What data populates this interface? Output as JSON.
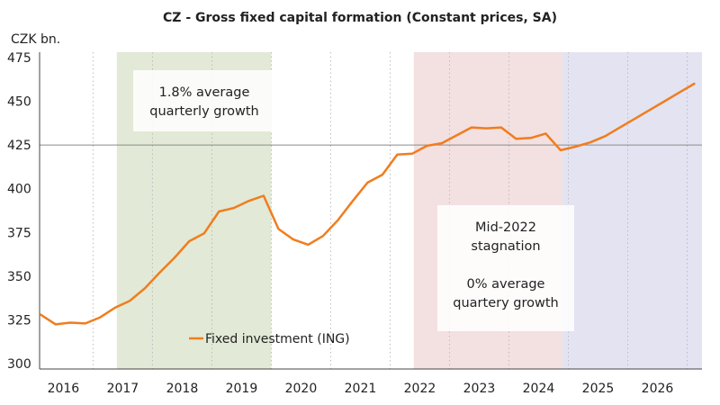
{
  "chart_data": {
    "type": "line",
    "title": "CZ - Gross fixed capital formation (Constant prices, SA)",
    "unit_label": "CZK bn.",
    "xlabel": "",
    "ylabel": "",
    "ylim": [
      297,
      478
    ],
    "yticks": [
      300,
      325,
      350,
      375,
      400,
      425,
      450,
      475
    ],
    "x_categories": [
      "2016",
      "2017",
      "2018",
      "2019",
      "2020",
      "2021",
      "2022",
      "2023",
      "2024",
      "2025",
      "2026"
    ],
    "xlim_years": [
      2015.6,
      2026.75
    ],
    "reference_line": 425,
    "series": [
      {
        "name": "Fixed investment (ING)",
        "color": "#f07d1e",
        "x": [
          2015.62,
          2015.87,
          2016.12,
          2016.37,
          2016.62,
          2016.87,
          2017.12,
          2017.37,
          2017.62,
          2017.87,
          2018.12,
          2018.37,
          2018.62,
          2018.87,
          2019.12,
          2019.37,
          2019.62,
          2019.87,
          2020.12,
          2020.37,
          2020.62,
          2020.87,
          2021.12,
          2021.37,
          2021.62,
          2021.87,
          2022.12,
          2022.37,
          2022.62,
          2022.87,
          2023.12,
          2023.37,
          2023.62,
          2023.87,
          2024.12,
          2024.37,
          2024.62,
          2024.87,
          2025.12,
          2025.37,
          2025.62,
          2025.87,
          2026.12,
          2026.37,
          2026.62
        ],
        "y": [
          328,
          322.5,
          323.5,
          323,
          326.5,
          332,
          336,
          343,
          352,
          360.5,
          370,
          374.5,
          387,
          389,
          393,
          396,
          377,
          371,
          368,
          373,
          382,
          393,
          403.5,
          408,
          419.5,
          420,
          424.5,
          426,
          430.5,
          435,
          434.5,
          435,
          428.5,
          429,
          431.5,
          422,
          424,
          426.5,
          430,
          435,
          440,
          445,
          450,
          455,
          460
        ]
      }
    ],
    "shaded_regions": [
      {
        "from": 2016.9,
        "to": 2019.5,
        "color": "#e2e9d6"
      },
      {
        "from": 2021.9,
        "to": 2024.4,
        "color": "#f3e0e1"
      },
      {
        "from": 2024.4,
        "to": 2026.75,
        "color": "#e4e3f2"
      }
    ],
    "annotations": [
      {
        "id": "growth-2017-2019",
        "lines": [
          "1.8% average",
          "quarterly growth"
        ]
      },
      {
        "id": "stagnation-2022",
        "lines": [
          "Mid-2022",
          "stagnation",
          "",
          "0% average",
          "quartery growth"
        ]
      }
    ],
    "legend": {
      "label": "Fixed investment (ING)",
      "placement": "bottom-left"
    },
    "grid": {
      "vertical": true,
      "style": "dotted"
    }
  }
}
